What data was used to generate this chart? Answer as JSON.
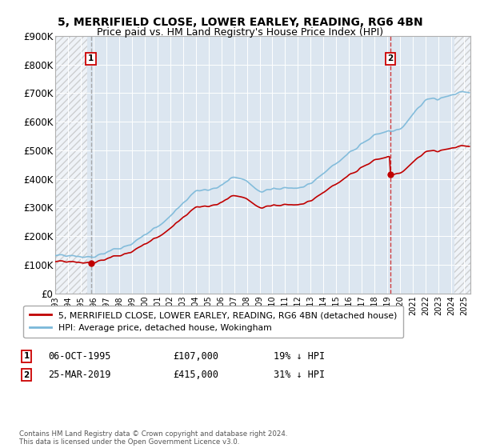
{
  "title": "5, MERRIFIELD CLOSE, LOWER EARLEY, READING, RG6 4BN",
  "subtitle": "Price paid vs. HM Land Registry's House Price Index (HPI)",
  "ylim": [
    0,
    900000
  ],
  "yticks": [
    0,
    100000,
    200000,
    300000,
    400000,
    500000,
    600000,
    700000,
    800000,
    900000
  ],
  "ytick_labels": [
    "£0",
    "£100K",
    "£200K",
    "£300K",
    "£400K",
    "£500K",
    "£600K",
    "£700K",
    "£800K",
    "£900K"
  ],
  "xlim_min": 1993.0,
  "xlim_max": 2025.5,
  "sale1_x": 1995.79,
  "sale1_y": 107000,
  "sale2_x": 2019.23,
  "sale2_y": 415000,
  "sale1_label": "06-OCT-1995",
  "sale1_price": "£107,000",
  "sale1_hpi": "19% ↓ HPI",
  "sale2_label": "25-MAR-2019",
  "sale2_price": "£415,000",
  "sale2_hpi": "31% ↓ HPI",
  "legend_line1": "5, MERRIFIELD CLOSE, LOWER EARLEY, READING, RG6 4BN (detached house)",
  "legend_line2": "HPI: Average price, detached house, Wokingham",
  "footer": "Contains HM Land Registry data © Crown copyright and database right 2024.\nThis data is licensed under the Open Government Licence v3.0.",
  "hpi_color": "#7ab8d9",
  "price_color": "#c00000",
  "bg_plot": "#dce6f0",
  "grid_color": "#ffffff",
  "hatch_left_end": 1995.5,
  "hatch_right_start": 2024.25
}
